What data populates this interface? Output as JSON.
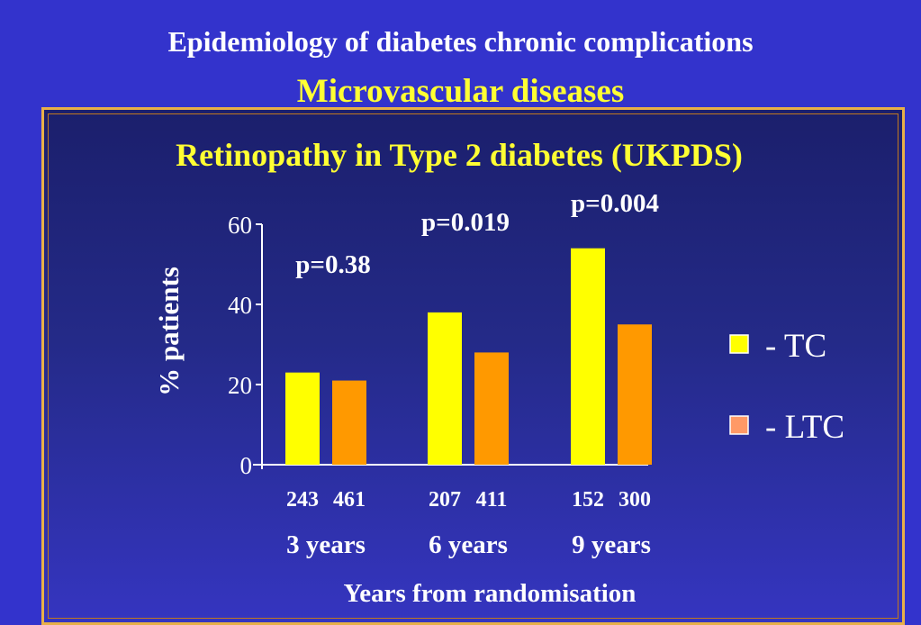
{
  "slide": {
    "title": "Epidemiology of diabetes chronic complications",
    "subtitle": "Microvascular diseases"
  },
  "colors": {
    "tc": "#ffff00",
    "ltc": "#ff9900",
    "background": "#3333cc",
    "border": "#e8b048"
  },
  "chart_data": {
    "type": "bar",
    "title": "Retinopathy in Type 2 diabetes (UKPDS)",
    "xlabel": "Years from randomisation",
    "ylabel": "% patients",
    "ylim": [
      0,
      60
    ],
    "yticks": [
      0,
      20,
      40,
      60
    ],
    "categories": [
      "3 years",
      "6 years",
      "9 years"
    ],
    "series": [
      {
        "name": "- TC",
        "values": [
          23,
          38,
          54
        ],
        "n": [
          "243",
          "207",
          "152"
        ]
      },
      {
        "name": " - LTC",
        "values": [
          21,
          28,
          35
        ],
        "n": [
          "461",
          "411",
          "300"
        ]
      }
    ],
    "p_values": [
      "p=0.38",
      "p=0.019",
      "p=0.004"
    ],
    "legend": "right",
    "grid": false
  }
}
